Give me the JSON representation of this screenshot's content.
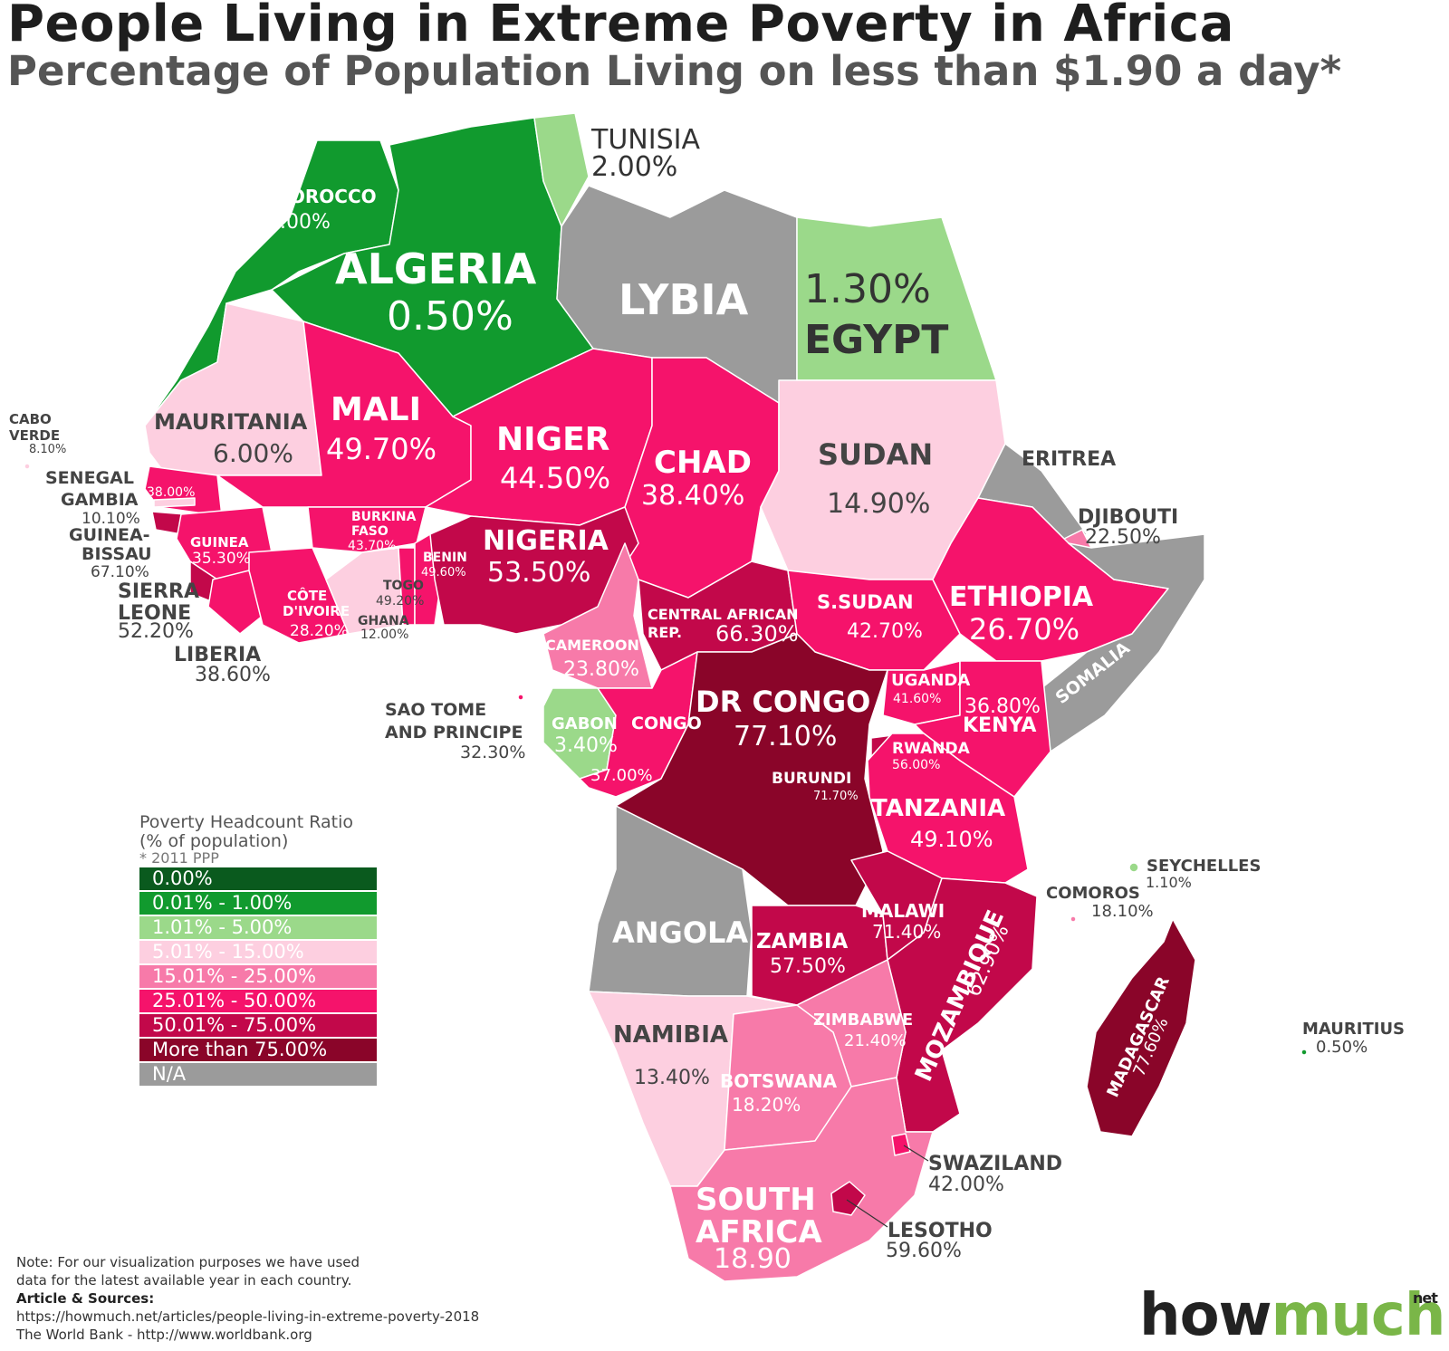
{
  "title": "People Living in Extreme Poverty in Africa",
  "subtitle": "Percentage of Population Living on less than $1.90 a day*",
  "colors": {
    "c0": "#0a5a1e",
    "c1": "#119a2e",
    "c2": "#9bd98a",
    "c3": "#fdcfe0",
    "c4": "#f77aa9",
    "c5": "#f5136b",
    "c6": "#c2084a",
    "c7": "#8a0529",
    "na": "#9b9b9b"
  },
  "countries": [
    {
      "name": "MOROCCO",
      "value": "1.00%",
      "bin": "c1"
    },
    {
      "name": "ALGERIA",
      "value": "0.50%",
      "bin": "c1"
    },
    {
      "name": "TUNISIA",
      "value": "2.00%",
      "bin": "c2"
    },
    {
      "name": "LYBIA",
      "value": "",
      "bin": "na"
    },
    {
      "name": "EGYPT",
      "value": "1.30%",
      "bin": "c2"
    },
    {
      "name": "MAURITANIA",
      "value": "6.00%",
      "bin": "c3"
    },
    {
      "name": "MALI",
      "value": "49.70%",
      "bin": "c5"
    },
    {
      "name": "NIGER",
      "value": "44.50%",
      "bin": "c5"
    },
    {
      "name": "CHAD",
      "value": "38.40%",
      "bin": "c5"
    },
    {
      "name": "SUDAN",
      "value": "14.90%",
      "bin": "c3"
    },
    {
      "name": "ERITREA",
      "value": "",
      "bin": "na"
    },
    {
      "name": "DJIBOUTI",
      "value": "22.50%",
      "bin": "c4"
    },
    {
      "name": "CABO VERDE",
      "value": "8.10%",
      "bin": "c3"
    },
    {
      "name": "SENEGAL",
      "value": "38.00%",
      "bin": "c5"
    },
    {
      "name": "GAMBIA",
      "value": "10.10%",
      "bin": "c3"
    },
    {
      "name": "GUINEA-BISSAU",
      "value": "67.10%",
      "bin": "c6"
    },
    {
      "name": "GUINEA",
      "value": "35.30%",
      "bin": "c5"
    },
    {
      "name": "SIERRA LEONE",
      "value": "52.20%",
      "bin": "c6"
    },
    {
      "name": "LIBERIA",
      "value": "38.60%",
      "bin": "c5"
    },
    {
      "name": "BURKINA FASO",
      "value": "43.70%",
      "bin": "c5"
    },
    {
      "name": "CÔTE D'IVOIRE",
      "value": "28.20%",
      "bin": "c5"
    },
    {
      "name": "TOGO",
      "value": "49.20%",
      "bin": "c5"
    },
    {
      "name": "GHANA",
      "value": "12.00%",
      "bin": "c3"
    },
    {
      "name": "BENIN",
      "value": "49.60%",
      "bin": "c5"
    },
    {
      "name": "NIGERIA",
      "value": "53.50%",
      "bin": "c6"
    },
    {
      "name": "CAMEROON",
      "value": "23.80%",
      "bin": "c4"
    },
    {
      "name": "CENTRAL AFRICAN REP.",
      "value": "66.30%",
      "bin": "c6"
    },
    {
      "name": "S.SUDAN",
      "value": "42.70%",
      "bin": "c5"
    },
    {
      "name": "ETHIOPIA",
      "value": "26.70%",
      "bin": "c5"
    },
    {
      "name": "SOMALIA",
      "value": "",
      "bin": "na"
    },
    {
      "name": "SAO TOME AND PRINCIPE",
      "value": "32.30%",
      "bin": "c5"
    },
    {
      "name": "GABON",
      "value": "3.40%",
      "bin": "c2"
    },
    {
      "name": "CONGO",
      "value": "37.00%",
      "bin": "c5"
    },
    {
      "name": "DR CONGO",
      "value": "77.10%",
      "bin": "c7"
    },
    {
      "name": "UGANDA",
      "value": "41.60%",
      "bin": "c5"
    },
    {
      "name": "KENYA",
      "value": "36.80%",
      "bin": "c5"
    },
    {
      "name": "RWANDA",
      "value": "56.00%",
      "bin": "c6"
    },
    {
      "name": "BURUNDI",
      "value": "71.70%",
      "bin": "c6"
    },
    {
      "name": "TANZANIA",
      "value": "49.10%",
      "bin": "c5"
    },
    {
      "name": "SEYCHELLES",
      "value": "1.10%",
      "bin": "c2"
    },
    {
      "name": "COMOROS",
      "value": "18.10%",
      "bin": "c4"
    },
    {
      "name": "ANGOLA",
      "value": "",
      "bin": "na"
    },
    {
      "name": "ZAMBIA",
      "value": "57.50%",
      "bin": "c6"
    },
    {
      "name": "MALAWI",
      "value": "71.40%",
      "bin": "c6"
    },
    {
      "name": "MOZAMBIQUE",
      "value": "62.90%",
      "bin": "c6"
    },
    {
      "name": "MADAGASCAR",
      "value": "77.60%",
      "bin": "c7"
    },
    {
      "name": "MAURITIUS",
      "value": "0.50%",
      "bin": "c1"
    },
    {
      "name": "NAMIBIA",
      "value": "13.40%",
      "bin": "c3"
    },
    {
      "name": "ZIMBABWE",
      "value": "21.40%",
      "bin": "c4"
    },
    {
      "name": "BOTSWANA",
      "value": "18.20%",
      "bin": "c4"
    },
    {
      "name": "SWAZILAND",
      "value": "42.00%",
      "bin": "c5"
    },
    {
      "name": "SOUTH AFRICA",
      "value": "18.90",
      "bin": "c4"
    },
    {
      "name": "LESOTHO",
      "value": "59.60%",
      "bin": "c6"
    }
  ],
  "labels": {
    "morocco": "MOROCCO",
    "morocco_v": "1.00%",
    "algeria": "ALGERIA",
    "algeria_v": "0.50%",
    "tunisia": "TUNISIA",
    "tunisia_v": "2.00%",
    "lybia": "LYBIA",
    "egypt": "EGYPT",
    "egypt_v": "1.30%",
    "mauritania": "MAURITANIA",
    "mauritania_v": "6.00%",
    "mali": "MALI",
    "mali_v": "49.70%",
    "niger": "NIGER",
    "niger_v": "44.50%",
    "chad": "CHAD",
    "chad_v": "38.40%",
    "sudan": "SUDAN",
    "sudan_v": "14.90%",
    "eritrea": "ERITREA",
    "djibouti": "DJIBOUTI",
    "djibouti_v": "22.50%",
    "cabo1": "CABO",
    "cabo2": "VERDE",
    "cabo_v": "8.10%",
    "senegal": "SENEGAL",
    "senegal_v": "38.00%",
    "gambia": "GAMBIA",
    "gambia_v": "10.10%",
    "gb1": "GUINEA-",
    "gb2": "BISSAU",
    "gb_v": "67.10%",
    "guinea": "GUINEA",
    "guinea_v": "35.30%",
    "sl1": "SIERRA",
    "sl2": "LEONE",
    "sl_v": "52.20%",
    "liberia": "LIBERIA",
    "liberia_v": "38.60%",
    "bf1": "BURKINA",
    "bf2": "FASO",
    "bf_v": "43.70%",
    "ci1": "CÔTE",
    "ci2": "D'IVOIRE",
    "ci_v": "28.20%",
    "togo": "TOGO",
    "togo_v": "49.20%",
    "ghana": "GHANA",
    "ghana_v": "12.00%",
    "benin": "BENIN",
    "benin_v": "49.60%",
    "nigeria": "NIGERIA",
    "nigeria_v": "53.50%",
    "cameroon": "CAMEROON",
    "cameroon_v": "23.80%",
    "car1": "CENTRAL AFRICAN",
    "car2": "REP.",
    "car_v": "66.30%",
    "ssudan": "S.SUDAN",
    "ssudan_v": "42.70%",
    "ethiopia": "ETHIOPIA",
    "ethiopia_v": "26.70%",
    "somalia": "SOMALIA",
    "stp1": "SAO TOME",
    "stp2": "AND PRINCIPE",
    "stp_v": "32.30%",
    "gabon": "GABON",
    "gabon_v": "3.40%",
    "congo": "CONGO",
    "congo_v": "37.00%",
    "drc": "DR CONGO",
    "drc_v": "77.10%",
    "uganda": "UGANDA",
    "uganda_v": "41.60%",
    "kenya": "KENYA",
    "kenya_v": "36.80%",
    "rwanda": "RWANDA",
    "rwanda_v": "56.00%",
    "burundi": "BURUNDI",
    "burundi_v": "71.70%",
    "tanzania": "TANZANIA",
    "tanzania_v": "49.10%",
    "seychelles": "SEYCHELLES",
    "seychelles_v": "1.10%",
    "comoros": "COMOROS",
    "comoros_v": "18.10%",
    "angola": "ANGOLA",
    "zambia": "ZAMBIA",
    "zambia_v": "57.50%",
    "malawi": "MALAWI",
    "malawi_v": "71.40%",
    "mozambique": "MOZAMBIQUE",
    "mozambique_v": "62.90%",
    "madagascar": "MADAGASCAR",
    "madagascar_v": "77.60%",
    "mauritius": "MAURITIUS",
    "mauritius_v": "0.50%",
    "namibia": "NAMIBIA",
    "namibia_v": "13.40%",
    "zimbabwe": "ZIMBABWE",
    "zimbabwe_v": "21.40%",
    "botswana": "BOTSWANA",
    "botswana_v": "18.20%",
    "swaziland": "SWAZILAND",
    "swaziland_v": "42.00%",
    "sa1": "SOUTH",
    "sa2": "AFRICA",
    "sa_v": "18.90",
    "lesotho": "LESOTHO",
    "lesotho_v": "59.60%"
  },
  "legend": {
    "title": "Poverty Headcount Ratio",
    "subtitle": "(% of population)",
    "note": "* 2011 PPP",
    "items": [
      {
        "label": "0.00%",
        "color": "#0a5a1e"
      },
      {
        "label": "0.01% - 1.00%",
        "color": "#119a2e"
      },
      {
        "label": "1.01% - 5.00%",
        "color": "#9bd98a"
      },
      {
        "label": "5.01% - 15.00%",
        "color": "#fdcfe0"
      },
      {
        "label": "15.01% - 25.00%",
        "color": "#f77aa9"
      },
      {
        "label": "25.01% - 50.00%",
        "color": "#f5136b"
      },
      {
        "label": "50.01% - 75.00%",
        "color": "#c2084a"
      },
      {
        "label": "More than 75.00%",
        "color": "#8a0529"
      },
      {
        "label": "N/A",
        "color": "#9b9b9b"
      }
    ]
  },
  "footer": {
    "note1": "Note: For our visualization purposes we have used",
    "note2": "data for the latest available year in each country.",
    "sources_label": "Article & Sources:",
    "url1": "https://howmuch.net/articles/people-living-in-extreme-poverty-2018",
    "url2": "The World Bank - http://www.worldbank.org"
  },
  "brand": {
    "how": "how",
    "much": "much",
    "net": "net"
  }
}
